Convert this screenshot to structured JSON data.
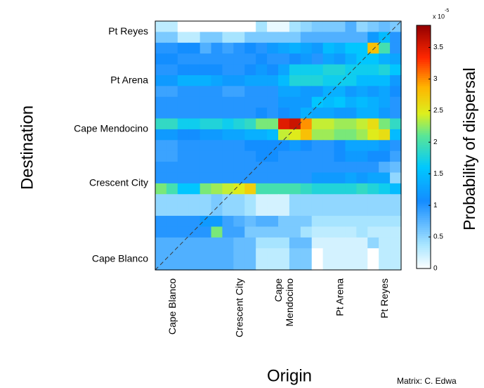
{
  "chart_data": {
    "type": "heatmap",
    "title": "",
    "xlabel": "Origin",
    "ylabel": "Destination",
    "colorbar_label": "Probability of dispersal",
    "colorbar_multiplier": "x 10",
    "colorbar_exponent": "-5",
    "colorbar_ticks": [
      "0",
      "0.5",
      "1",
      "1.5",
      "2",
      "2.5",
      "3",
      "3.5"
    ],
    "colorbar_tick_values": [
      0,
      0.5,
      1,
      1.5,
      2,
      2.5,
      3,
      3.5
    ],
    "value_range": [
      0,
      3.85
    ],
    "x_ticks": [
      {
        "label": "Cape Blanco",
        "col": 1
      },
      {
        "label": "Crescent City",
        "col": 7
      },
      {
        "label": "Cape Mendocino",
        "col": 11
      },
      {
        "label": "Pt Arena",
        "col": 16
      },
      {
        "label": "Pt Reyes",
        "col": 20
      }
    ],
    "y_ticks": [
      {
        "label": "Pt Reyes",
        "row": 0.5
      },
      {
        "label": "Pt Arena",
        "row": 5
      },
      {
        "label": "Cape Mendocino",
        "row": 9.5
      },
      {
        "label": "Crescent City",
        "row": 14.5
      },
      {
        "label": "Cape Blanco",
        "row": 21.5
      }
    ],
    "grid": false,
    "diagonal_line": true,
    "rows_top_to_bottom": [
      [
        0.3,
        0.3,
        0.0,
        0.0,
        0.0,
        0.0,
        0.0,
        0.0,
        0.0,
        0.4,
        0.1,
        0.1,
        0.4,
        0.5,
        0.6,
        0.6,
        0.6,
        0.8,
        0.5,
        0.6,
        0.7,
        0.6
      ],
      [
        0.6,
        0.6,
        0.3,
        0.3,
        0.6,
        0.6,
        0.4,
        0.4,
        0.6,
        0.6,
        0.6,
        0.6,
        0.6,
        0.8,
        0.8,
        0.8,
        0.8,
        0.8,
        0.8,
        1.2,
        1.5,
        1.0
      ],
      [
        1.0,
        1.0,
        1.1,
        1.1,
        0.8,
        1.0,
        0.9,
        1.0,
        1.1,
        1.0,
        1.2,
        1.3,
        1.4,
        1.3,
        1.2,
        1.5,
        1.4,
        1.6,
        1.6,
        2.8,
        2.0,
        1.0
      ],
      [
        1.1,
        1.1,
        1.0,
        1.0,
        1.0,
        1.0,
        1.0,
        1.0,
        1.0,
        1.1,
        1.0,
        1.0,
        1.1,
        1.2,
        1.0,
        1.3,
        1.2,
        1.4,
        1.6,
        1.6,
        1.4,
        1.3
      ],
      [
        1.0,
        1.0,
        1.1,
        1.1,
        1.1,
        1.1,
        1.0,
        1.0,
        1.1,
        1.2,
        1.1,
        1.3,
        1.7,
        1.7,
        1.7,
        1.8,
        1.8,
        1.7,
        1.7,
        1.7,
        1.8,
        1.6
      ],
      [
        1.2,
        1.2,
        1.4,
        1.4,
        1.4,
        1.3,
        1.2,
        1.2,
        1.3,
        1.3,
        1.3,
        1.5,
        1.8,
        1.8,
        1.8,
        1.7,
        1.7,
        1.7,
        1.5,
        1.5,
        1.5,
        1.2
      ],
      [
        0.9,
        0.9,
        1.0,
        1.0,
        1.0,
        1.0,
        0.9,
        0.9,
        1.0,
        1.0,
        1.0,
        1.3,
        1.3,
        1.2,
        1.2,
        1.4,
        1.4,
        1.2,
        1.3,
        1.2,
        1.3,
        1.1
      ],
      [
        1.0,
        1.0,
        1.0,
        1.0,
        1.0,
        1.0,
        1.0,
        1.0,
        1.0,
        1.0,
        1.0,
        1.2,
        1.2,
        1.2,
        1.6,
        1.5,
        1.6,
        1.4,
        1.5,
        1.4,
        1.3,
        1.0
      ],
      [
        1.0,
        1.0,
        1.0,
        1.0,
        1.0,
        1.0,
        1.0,
        1.0,
        1.0,
        1.1,
        1.0,
        1.1,
        1.2,
        1.4,
        1.3,
        1.3,
        1.2,
        1.2,
        1.4,
        1.4,
        1.2,
        1.0
      ],
      [
        1.9,
        1.9,
        1.7,
        1.7,
        1.8,
        1.8,
        1.7,
        1.8,
        1.9,
        2.2,
        2.2,
        3.5,
        3.6,
        3.0,
        2.4,
        2.4,
        2.3,
        2.3,
        2.4,
        2.6,
        2.2,
        1.9
      ],
      [
        1.2,
        1.2,
        1.1,
        1.1,
        1.2,
        1.2,
        1.3,
        1.3,
        1.4,
        1.4,
        1.5,
        2.4,
        2.5,
        2.8,
        2.3,
        2.3,
        2.2,
        2.2,
        2.3,
        2.5,
        2.6,
        1.5
      ],
      [
        0.9,
        0.9,
        1.0,
        1.0,
        1.0,
        1.0,
        1.0,
        1.0,
        1.1,
        1.1,
        1.1,
        1.1,
        1.2,
        1.1,
        1.0,
        1.0,
        1.1,
        1.3,
        1.3,
        1.3,
        1.2,
        1.0
      ],
      [
        0.9,
        0.9,
        1.0,
        1.0,
        1.0,
        1.0,
        1.0,
        1.0,
        1.0,
        1.1,
        1.1,
        1.0,
        1.0,
        1.0,
        1.0,
        1.0,
        1.1,
        1.2,
        1.2,
        1.1,
        1.1,
        0.9
      ],
      [
        1.0,
        1.0,
        1.0,
        1.0,
        1.0,
        1.0,
        1.0,
        1.0,
        1.0,
        1.0,
        1.0,
        1.0,
        1.0,
        1.0,
        1.0,
        1.0,
        1.0,
        1.0,
        1.0,
        1.0,
        0.8,
        0.7
      ],
      [
        1.0,
        1.0,
        1.0,
        1.0,
        1.0,
        1.0,
        1.0,
        1.0,
        1.0,
        1.0,
        1.0,
        1.0,
        1.0,
        1.0,
        1.2,
        1.2,
        1.2,
        1.3,
        1.2,
        1.3,
        1.3,
        0.5
      ],
      [
        2.2,
        2.0,
        1.6,
        1.6,
        2.2,
        2.3,
        2.4,
        2.5,
        2.7,
        2.0,
        2.0,
        2.0,
        2.0,
        1.9,
        1.8,
        1.8,
        1.8,
        1.8,
        1.9,
        1.8,
        1.7,
        1.5
      ],
      [
        0.5,
        0.5,
        0.5,
        0.5,
        0.5,
        0.6,
        0.5,
        0.5,
        0.4,
        0.2,
        0.2,
        0.2,
        0.5,
        0.5,
        0.5,
        0.5,
        0.5,
        0.5,
        0.5,
        0.5,
        0.5,
        0.5
      ],
      [
        0.5,
        0.5,
        0.5,
        0.5,
        0.5,
        0.6,
        0.5,
        0.5,
        0.4,
        0.2,
        0.2,
        0.2,
        0.5,
        0.5,
        0.5,
        0.5,
        0.5,
        0.5,
        0.5,
        0.5,
        0.5,
        0.5
      ],
      [
        1.0,
        1.0,
        1.0,
        1.0,
        1.2,
        1.2,
        0.9,
        0.8,
        0.7,
        0.8,
        0.8,
        0.6,
        0.6,
        0.6,
        0.4,
        0.4,
        0.4,
        0.4,
        0.4,
        0.4,
        0.4,
        0.4
      ],
      [
        1.0,
        1.0,
        1.0,
        1.0,
        1.0,
        2.2,
        0.9,
        0.9,
        0.6,
        0.6,
        0.6,
        0.6,
        0.6,
        0.4,
        0.3,
        0.3,
        0.3,
        0.3,
        0.4,
        0.3,
        0.3,
        0.3
      ],
      [
        0.8,
        0.8,
        0.8,
        0.8,
        0.8,
        0.8,
        0.8,
        0.7,
        0.7,
        0.4,
        0.4,
        0.4,
        0.7,
        0.7,
        0.2,
        0.2,
        0.2,
        0.2,
        0.2,
        0.5,
        0.3,
        0.3
      ],
      [
        0.8,
        0.8,
        0.8,
        0.8,
        0.8,
        0.8,
        0.8,
        0.7,
        0.7,
        0.3,
        0.3,
        0.3,
        0.6,
        0.6,
        0.0,
        0.2,
        0.2,
        0.2,
        0.2,
        0.0,
        0.3,
        0.3
      ],
      [
        0.8,
        0.8,
        0.8,
        0.8,
        0.8,
        0.8,
        0.8,
        0.7,
        0.7,
        0.3,
        0.3,
        0.3,
        0.6,
        0.6,
        0.0,
        0.2,
        0.2,
        0.2,
        0.2,
        0.0,
        0.3,
        0.3
      ]
    ]
  },
  "footer": {
    "credit": "Matrix: C. Edwa"
  }
}
